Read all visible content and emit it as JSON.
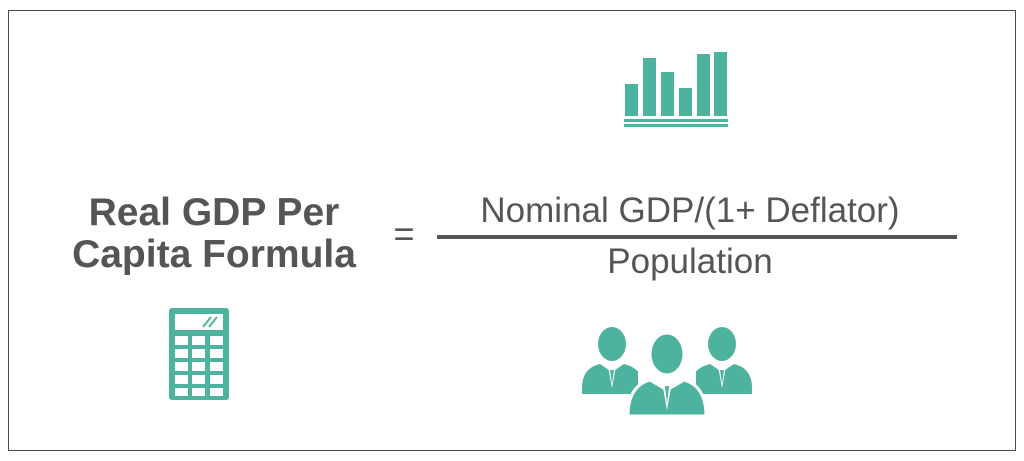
{
  "formula": {
    "title_line1": "Real GDP Per",
    "title_line2": "Capita Formula",
    "equals": "=",
    "numerator": "Nominal GDP/(1+ Deflator)",
    "denominator": "Population"
  },
  "icons": {
    "chart": "bar-chart-icon",
    "calculator": "calculator-icon",
    "people": "people-group-icon"
  },
  "colors": {
    "accent": "#4db39e",
    "text": "#555555",
    "border": "#4a4a4a"
  }
}
